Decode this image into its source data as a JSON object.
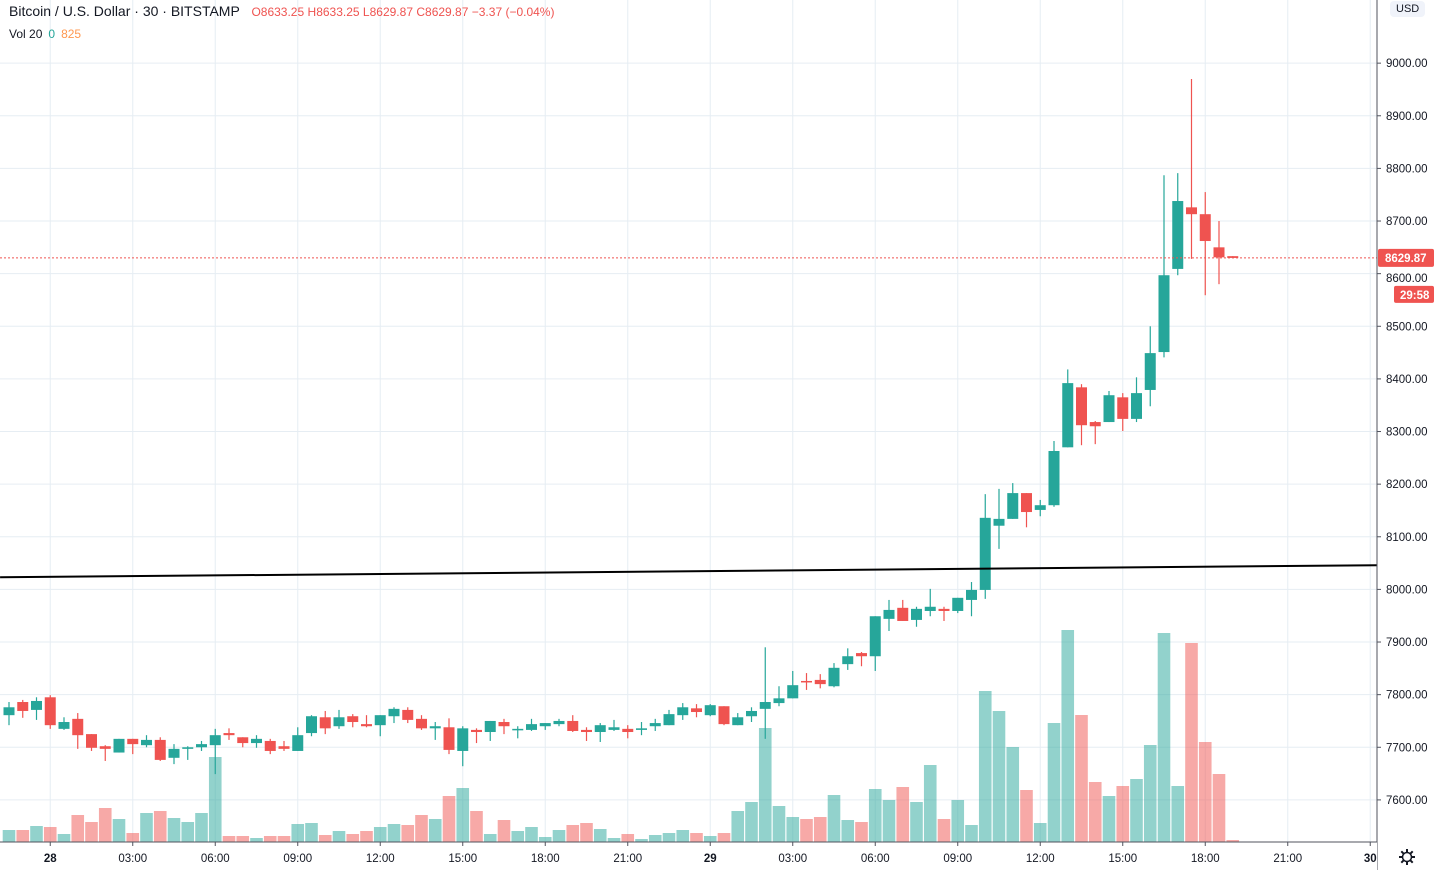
{
  "header": {
    "symbol_title": "Bitcoin / U.S. Dollar · 30 · BITSTAMP",
    "open_label": "O",
    "open": "8633.25",
    "high_label": "H",
    "high": "8633.25",
    "low_label": "L",
    "low": "8629.87",
    "close_label": "C",
    "close": "8629.87",
    "change": "−3.37 (−0.04%)"
  },
  "volume_legend": {
    "label": "Vol 20",
    "value1": "0",
    "value2": "825"
  },
  "currency_badge": "USD",
  "price_axis": {
    "labels": [
      "9000.00",
      "8900.00",
      "8800.00",
      "8700.00",
      "8600.00",
      "8500.00",
      "8400.00",
      "8300.00",
      "8200.00",
      "8100.00",
      "8000.00",
      "7900.00",
      "7800.00",
      "7700.00",
      "7600.00"
    ],
    "current_price": "8629.87",
    "countdown": "29:58"
  },
  "time_axis": {
    "labels": [
      {
        "text": "28",
        "bar": 3,
        "bold": true
      },
      {
        "text": "03:00",
        "bar": 9
      },
      {
        "text": "06:00",
        "bar": 15
      },
      {
        "text": "09:00",
        "bar": 21
      },
      {
        "text": "12:00",
        "bar": 27
      },
      {
        "text": "15:00",
        "bar": 33
      },
      {
        "text": "18:00",
        "bar": 39
      },
      {
        "text": "21:00",
        "bar": 45
      },
      {
        "text": "29",
        "bar": 51,
        "bold": true
      },
      {
        "text": "03:00",
        "bar": 57
      },
      {
        "text": "06:00",
        "bar": 63
      },
      {
        "text": "09:00",
        "bar": 69
      },
      {
        "text": "12:00",
        "bar": 75
      },
      {
        "text": "15:00",
        "bar": 81
      },
      {
        "text": "18:00",
        "bar": 87
      },
      {
        "text": "21:00",
        "bar": 93
      },
      {
        "text": "30",
        "bar": 99,
        "bold": true
      }
    ]
  },
  "colors": {
    "up": "#26a69a",
    "down": "#ef5350",
    "grid": "#e6edf3",
    "trendline": "#000000",
    "axis_text": "#131722"
  },
  "chart_data": {
    "type": "candlestick",
    "title": "Bitcoin / U.S. Dollar · 30 · BITSTAMP",
    "interval_minutes": 30,
    "price_range": [
      7520,
      9120
    ],
    "fields": [
      "open",
      "high",
      "low",
      "close",
      "volume"
    ],
    "candles": [
      [
        7761,
        7786,
        7742,
        7776,
        120
      ],
      [
        7786,
        7790,
        7756,
        7769,
        120
      ],
      [
        7771,
        7795,
        7752,
        7788,
        160
      ],
      [
        7795,
        7799,
        7735,
        7742,
        150
      ],
      [
        7735,
        7757,
        7733,
        7748,
        80
      ],
      [
        7754,
        7765,
        7697,
        7723,
        270
      ],
      [
        7725,
        7725,
        7693,
        7699,
        200
      ],
      [
        7702,
        7704,
        7674,
        7697,
        340
      ],
      [
        7690,
        7716,
        7690,
        7716,
        230
      ],
      [
        7716,
        7716,
        7687,
        7706,
        90
      ],
      [
        7704,
        7723,
        7700,
        7714,
        290
      ],
      [
        7714,
        7719,
        7674,
        7676,
        310
      ],
      [
        7680,
        7706,
        7668,
        7697,
        240
      ],
      [
        7697,
        7702,
        7676,
        7700,
        200
      ],
      [
        7700,
        7712,
        7693,
        7706,
        290
      ],
      [
        7704,
        7735,
        7649,
        7723,
        850
      ],
      [
        7727,
        7736,
        7714,
        7723,
        60
      ],
      [
        7719,
        7719,
        7700,
        7708,
        60
      ],
      [
        7708,
        7723,
        7699,
        7716,
        40
      ],
      [
        7712,
        7716,
        7687,
        7693,
        60
      ],
      [
        7702,
        7712,
        7693,
        7697,
        60
      ],
      [
        7693,
        7738,
        7693,
        7723,
        180
      ],
      [
        7727,
        7761,
        7721,
        7759,
        190
      ],
      [
        7757,
        7769,
        7725,
        7736,
        70
      ],
      [
        7740,
        7771,
        7735,
        7757,
        110
      ],
      [
        7759,
        7763,
        7738,
        7748,
        80
      ],
      [
        7744,
        7761,
        7738,
        7740,
        110
      ],
      [
        7742,
        7761,
        7721,
        7761,
        150
      ],
      [
        7759,
        7776,
        7746,
        7773,
        180
      ],
      [
        7771,
        7776,
        7746,
        7752,
        170
      ],
      [
        7754,
        7761,
        7733,
        7736,
        270
      ],
      [
        7736,
        7748,
        7714,
        7740,
        230
      ],
      [
        7738,
        7755,
        7687,
        7695,
        460
      ],
      [
        7693,
        7740,
        7664,
        7736,
        540
      ],
      [
        7733,
        7736,
        7708,
        7729,
        310
      ],
      [
        7729,
        7750,
        7712,
        7750,
        80
      ],
      [
        7748,
        7754,
        7725,
        7740,
        220
      ],
      [
        7734,
        7740,
        7717,
        7735,
        110
      ],
      [
        7733,
        7754,
        7731,
        7744,
        150
      ],
      [
        7740,
        7746,
        7733,
        7746,
        50
      ],
      [
        7744,
        7754,
        7740,
        7750,
        120
      ],
      [
        7750,
        7761,
        7729,
        7731,
        170
      ],
      [
        7733,
        7738,
        7712,
        7729,
        190
      ],
      [
        7729,
        7746,
        7710,
        7742,
        130
      ],
      [
        7733,
        7752,
        7731,
        7738,
        40
      ],
      [
        7735,
        7742,
        7717,
        7729,
        80
      ],
      [
        7733,
        7748,
        7723,
        7736,
        30
      ],
      [
        7740,
        7754,
        7731,
        7746,
        70
      ],
      [
        7742,
        7771,
        7742,
        7763,
        90
      ],
      [
        7761,
        7784,
        7752,
        7776,
        120
      ],
      [
        7774,
        7782,
        7757,
        7767,
        90
      ],
      [
        7761,
        7782,
        7759,
        7780,
        60
      ],
      [
        7778,
        7778,
        7742,
        7744,
        90
      ],
      [
        7742,
        7765,
        7742,
        7757,
        310
      ],
      [
        7759,
        7776,
        7748,
        7769,
        400
      ],
      [
        7773,
        7890,
        7716,
        7786,
        1140
      ],
      [
        7784,
        7816,
        7778,
        7793,
        360
      ],
      [
        7793,
        7845,
        7793,
        7818,
        250
      ],
      [
        7826,
        7841,
        7809,
        7824,
        230
      ],
      [
        7828,
        7839,
        7812,
        7820,
        250
      ],
      [
        7816,
        7860,
        7814,
        7851,
        470
      ],
      [
        7858,
        7888,
        7847,
        7873,
        220
      ],
      [
        7879,
        7881,
        7854,
        7873,
        200
      ],
      [
        7873,
        7949,
        7845,
        7949,
        530
      ],
      [
        7944,
        7980,
        7921,
        7961,
        420
      ],
      [
        7965,
        7980,
        7940,
        7940,
        550
      ],
      [
        7942,
        7967,
        7929,
        7963,
        400
      ],
      [
        7959,
        8001,
        7949,
        7967,
        770
      ],
      [
        7963,
        7967,
        7940,
        7959,
        230
      ],
      [
        7959,
        7984,
        7955,
        7984,
        420
      ],
      [
        7980,
        8014,
        7949,
        7999,
        170
      ],
      [
        7999,
        8181,
        7982,
        8136,
        1510
      ],
      [
        8121,
        8191,
        8077,
        8134,
        1310
      ],
      [
        8134,
        8202,
        8134,
        8183,
        950
      ],
      [
        8183,
        8183,
        8118,
        8147,
        520
      ],
      [
        8151,
        8170,
        8139,
        8160,
        190
      ],
      [
        8160,
        8282,
        8157,
        8263,
        1190
      ],
      [
        8270,
        8418,
        8270,
        8392,
        2120
      ],
      [
        8384,
        8390,
        8274,
        8312,
        1270
      ],
      [
        8318,
        8320,
        8276,
        8310,
        600
      ],
      [
        8318,
        8377,
        8318,
        8369,
        460
      ],
      [
        8365,
        8373,
        8301,
        8324,
        560
      ],
      [
        8324,
        8403,
        8318,
        8373,
        630
      ],
      [
        8379,
        8500,
        8348,
        8449,
        970
      ],
      [
        8451,
        8787,
        8441,
        8597,
        2090
      ],
      [
        8609,
        8791,
        8597,
        8738,
        560
      ],
      [
        8726,
        8970,
        8628,
        8713,
        1990
      ],
      [
        8713,
        8755,
        8559,
        8662,
        1000
      ],
      [
        8650,
        8700,
        8580,
        8631,
        680
      ],
      [
        8633.25,
        8633.25,
        8629.87,
        8629.87,
        20
      ]
    ],
    "trendline": {
      "start_bar": -0.65,
      "start_price": 8023,
      "end_bar": 99.5,
      "end_price": 8046
    },
    "current_price_line": 8629.87,
    "grid": true
  }
}
